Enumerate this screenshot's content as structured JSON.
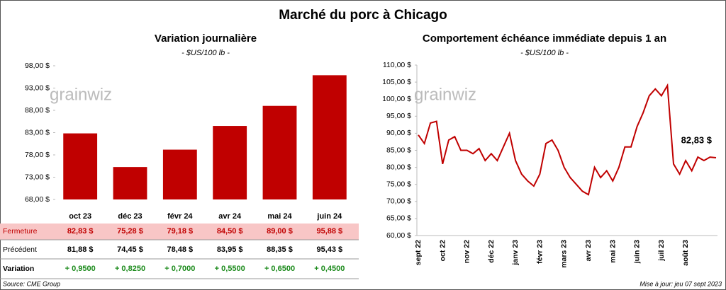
{
  "title": "Marché du porc à Chicago",
  "logo": "grainwiz",
  "source": "Source: CME Group",
  "updated": "Mise à jour: jeu 07 sept 2023",
  "chart_data": [
    {
      "type": "bar",
      "title": "Variation journalière",
      "subtitle": "- $US/100 lb -",
      "categories": [
        "oct 23",
        "déc 23",
        "févr 24",
        "avr 24",
        "mai 24",
        "juin 24"
      ],
      "values": [
        82.83,
        75.28,
        79.18,
        84.5,
        89.0,
        95.88
      ],
      "color": "#c00000",
      "grid": false,
      "ylim": [
        68,
        98
      ],
      "yticks": [
        {
          "value": 68,
          "label": "68,00 $"
        },
        {
          "value": 73,
          "label": "73,00 $"
        },
        {
          "value": 78,
          "label": "78,00 $"
        },
        {
          "value": 83,
          "label": "83,00 $"
        },
        {
          "value": 88,
          "label": "88,00 $"
        },
        {
          "value": 93,
          "label": "93,00 $"
        },
        {
          "value": 98,
          "label": "98,00 $"
        }
      ]
    },
    {
      "type": "line",
      "title": "Comportement  échéance immédiate depuis 1 an",
      "subtitle": "- $US/100 lb -",
      "categories": [
        "sept 22",
        null,
        null,
        null,
        "oct 22",
        null,
        null,
        null,
        "nov 22",
        null,
        null,
        null,
        "déc 22",
        null,
        null,
        null,
        "janv 23",
        null,
        null,
        null,
        "févr 23",
        null,
        null,
        null,
        "mars 23",
        null,
        null,
        null,
        "avr 23",
        null,
        null,
        null,
        "mai 23",
        null,
        null,
        null,
        "juin 23",
        null,
        null,
        null,
        "juil 23",
        null,
        null,
        null,
        "août 23",
        null,
        null,
        null,
        null,
        null
      ],
      "values": [
        89.5,
        87,
        93,
        93.5,
        81,
        88,
        89,
        85,
        85,
        84,
        85.5,
        82,
        84,
        82,
        86,
        90,
        82,
        78,
        76,
        74.5,
        78,
        87,
        88,
        85,
        80,
        77,
        75,
        73,
        72,
        80,
        77,
        79,
        76,
        80,
        86,
        86,
        92,
        96,
        101,
        103,
        101,
        104,
        81,
        78,
        82,
        79,
        83,
        82,
        83,
        82.83
      ],
      "color": "#c00000",
      "grid": false,
      "annotation": "82,83 $",
      "ylim": [
        60,
        110
      ],
      "yticks": [
        {
          "value": 60,
          "label": "60,00 $"
        },
        {
          "value": 65,
          "label": "65,00 $"
        },
        {
          "value": 70,
          "label": "70,00 $"
        },
        {
          "value": 75,
          "label": "75,00 $"
        },
        {
          "value": 80,
          "label": "80,00 $"
        },
        {
          "value": 85,
          "label": "85,00 $"
        },
        {
          "value": 90,
          "label": "90,00 $"
        },
        {
          "value": 95,
          "label": "95,00 $"
        },
        {
          "value": 100,
          "label": "100,00 $"
        },
        {
          "value": 105,
          "label": "105,00 $"
        },
        {
          "value": 110,
          "label": "110,00 $"
        }
      ]
    }
  ],
  "table": {
    "rows": [
      [
        "Fermeture",
        "82,83 $",
        "75,28 $",
        "79,18 $",
        "84,50 $",
        "89,00 $",
        "95,88 $"
      ],
      [
        "Précédent",
        "81,88 $",
        "74,45 $",
        "78,48 $",
        "83,95 $",
        "88,35 $",
        "95,43 $"
      ],
      [
        "Variation",
        "+ 0,9500",
        "+ 0,8250",
        "+ 0,7000",
        "+ 0,5500",
        "+ 0,6500",
        "+ 0,4500"
      ]
    ]
  }
}
